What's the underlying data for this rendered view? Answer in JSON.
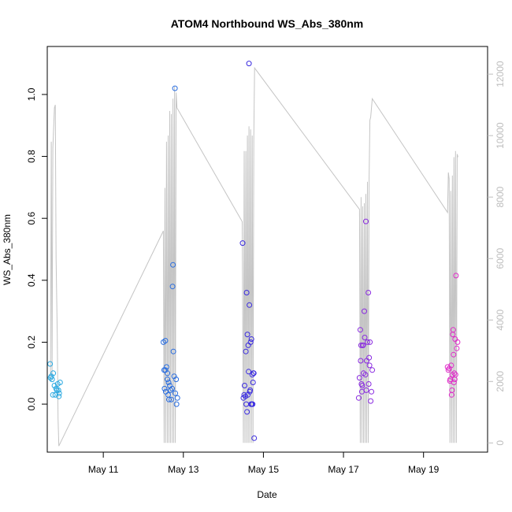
{
  "chart_data": {
    "type": "scatter",
    "title": "ATOM4 Northbound WS_Abs_380nm",
    "xlabel": "Date",
    "ylabel": "WS_Abs_380nm",
    "x_axis": {
      "unit": "days since May 1",
      "range": [
        9.6,
        20.6
      ],
      "ticks": [
        {
          "value": 11,
          "label": "May 11"
        },
        {
          "value": 13,
          "label": "May 13"
        },
        {
          "value": 15,
          "label": "May 15"
        },
        {
          "value": 17,
          "label": "May 17"
        },
        {
          "value": 19,
          "label": "May 19"
        }
      ]
    },
    "y_left": {
      "range": [
        -0.155,
        1.155
      ],
      "ticks": [
        0.0,
        0.2,
        0.4,
        0.6,
        0.8,
        1.0
      ],
      "tick_labels": [
        "0.0",
        "0.2",
        "0.4",
        "0.6",
        "0.8",
        "1.0"
      ]
    },
    "y_right": {
      "range": [
        -300,
        12900
      ],
      "ticks": [
        0,
        2000,
        4000,
        6000,
        8000,
        10000,
        12000
      ],
      "tick_labels": [
        "0",
        "2000",
        "4000",
        "6000",
        "8000",
        "10000",
        "12000"
      ],
      "color": "#bdbdbd"
    },
    "grid": false,
    "legend": "none",
    "series": [
      {
        "marker": "open-circle",
        "color": "#29a8e0",
        "points": [
          [
            9.67,
            0.13
          ],
          [
            9.7,
            0.09
          ],
          [
            9.72,
            0.08
          ],
          [
            9.75,
            0.1
          ],
          [
            9.78,
            0.06
          ],
          [
            9.8,
            0.03
          ],
          [
            9.82,
            0.05
          ],
          [
            9.84,
            0.045
          ],
          [
            9.86,
            0.065
          ],
          [
            9.88,
            0.045
          ],
          [
            9.89,
            0.025
          ],
          [
            9.9,
            0.035
          ],
          [
            9.92,
            0.07
          ],
          [
            9.74,
            0.03
          ],
          [
            9.68,
            0.085
          ]
        ]
      },
      {
        "marker": "open-circle",
        "color": "#2a6ee0",
        "points": [
          [
            12.5,
            0.2
          ],
          [
            12.52,
            0.11
          ],
          [
            12.53,
            0.05
          ],
          [
            12.55,
            0.11
          ],
          [
            12.56,
            0.04
          ],
          [
            12.58,
            0.12
          ],
          [
            12.6,
            0.08
          ],
          [
            12.62,
            0.03
          ],
          [
            12.63,
            0.07
          ],
          [
            12.64,
            0.015
          ],
          [
            12.66,
            0.06
          ],
          [
            12.68,
            0.045
          ],
          [
            12.7,
            0.015
          ],
          [
            12.72,
            0.05
          ],
          [
            12.73,
            0.38
          ],
          [
            12.74,
            0.45
          ],
          [
            12.75,
            0.17
          ],
          [
            12.77,
            0.09
          ],
          [
            12.79,
            1.02
          ],
          [
            12.8,
            0.035
          ],
          [
            12.82,
            0.08
          ],
          [
            12.83,
            0.0
          ],
          [
            12.85,
            0.02
          ],
          [
            12.55,
            0.205
          ],
          [
            12.6,
            0.1
          ]
        ]
      },
      {
        "marker": "open-circle",
        "color": "#3a2be0",
        "points": [
          [
            14.48,
            0.52
          ],
          [
            14.5,
            0.02
          ],
          [
            14.52,
            0.03
          ],
          [
            14.53,
            0.06
          ],
          [
            14.55,
            0.025
          ],
          [
            14.56,
            0.17
          ],
          [
            14.58,
            0.36
          ],
          [
            14.6,
            0.225
          ],
          [
            14.62,
            0.19
          ],
          [
            14.63,
            0.105
          ],
          [
            14.65,
            0.32
          ],
          [
            14.66,
            0.04
          ],
          [
            14.68,
            0.2
          ],
          [
            14.69,
            0.0
          ],
          [
            14.7,
            0.21
          ],
          [
            14.71,
            0.0
          ],
          [
            14.72,
            0.095
          ],
          [
            14.74,
            0.07
          ],
          [
            14.75,
            0.1
          ],
          [
            14.77,
            -0.11
          ],
          [
            14.57,
            0.0
          ],
          [
            14.59,
            -0.025
          ],
          [
            14.61,
            0.03
          ],
          [
            14.64,
            1.1
          ],
          [
            14.67,
            0.045
          ],
          [
            14.73,
            0.0
          ],
          [
            14.76,
            0.1
          ]
        ]
      },
      {
        "marker": "open-circle",
        "color": "#8a2be0",
        "points": [
          [
            17.38,
            0.02
          ],
          [
            17.4,
            0.085
          ],
          [
            17.42,
            0.24
          ],
          [
            17.44,
            0.19
          ],
          [
            17.45,
            0.065
          ],
          [
            17.47,
            0.06
          ],
          [
            17.49,
            0.19
          ],
          [
            17.5,
            0.1
          ],
          [
            17.52,
            0.3
          ],
          [
            17.53,
            0.215
          ],
          [
            17.55,
            0.095
          ],
          [
            17.56,
            0.59
          ],
          [
            17.58,
            0.14
          ],
          [
            17.6,
            0.2
          ],
          [
            17.62,
            0.36
          ],
          [
            17.63,
            0.065
          ],
          [
            17.65,
            0.125
          ],
          [
            17.66,
            0.2
          ],
          [
            17.68,
            0.01
          ],
          [
            17.7,
            0.04
          ],
          [
            17.72,
            0.11
          ],
          [
            17.43,
            0.14
          ],
          [
            17.46,
            0.04
          ],
          [
            17.57,
            0.045
          ],
          [
            17.64,
            0.15
          ],
          [
            17.48,
            0.19
          ]
        ]
      },
      {
        "marker": "open-circle",
        "color": "#e02bc9",
        "points": [
          [
            19.6,
            0.12
          ],
          [
            19.62,
            0.11
          ],
          [
            19.64,
            0.115
          ],
          [
            19.66,
            0.075
          ],
          [
            19.67,
            0.08
          ],
          [
            19.69,
            0.125
          ],
          [
            19.7,
            0.03
          ],
          [
            19.71,
            0.045
          ],
          [
            19.73,
            0.225
          ],
          [
            19.74,
            0.24
          ],
          [
            19.75,
            0.16
          ],
          [
            19.77,
            0.1
          ],
          [
            19.78,
            0.08
          ],
          [
            19.79,
            0.21
          ],
          [
            19.8,
            0.095
          ],
          [
            19.81,
            0.415
          ],
          [
            19.83,
            0.18
          ],
          [
            19.85,
            0.2
          ],
          [
            19.72,
            0.095
          ],
          [
            19.76,
            0.07
          ]
        ]
      }
    ],
    "line_series": {
      "axis": "right",
      "color": "#c4c4c4",
      "description": "altitude-like trace on secondary axis",
      "points": [
        [
          9.68,
          2000
        ],
        [
          9.7,
          9800
        ],
        [
          9.72,
          2200
        ],
        [
          9.74,
          9600
        ],
        [
          9.78,
          10900
        ],
        [
          9.8,
          11000
        ],
        [
          9.82,
          6000
        ],
        [
          9.85,
          3500
        ],
        [
          9.87,
          800
        ],
        [
          9.89,
          -100
        ],
        [
          12.5,
          6900
        ],
        [
          12.52,
          0
        ],
        [
          12.54,
          8300
        ],
        [
          12.56,
          0
        ],
        [
          12.58,
          9800
        ],
        [
          12.6,
          0
        ],
        [
          12.62,
          10000
        ],
        [
          12.64,
          0
        ],
        [
          12.66,
          10800
        ],
        [
          12.68,
          0
        ],
        [
          12.7,
          10700
        ],
        [
          12.72,
          0
        ],
        [
          12.74,
          11200
        ],
        [
          12.76,
          0
        ],
        [
          12.78,
          11600
        ],
        [
          12.8,
          0
        ],
        [
          12.82,
          11400
        ],
        [
          12.84,
          10900
        ],
        [
          14.47,
          7200
        ],
        [
          14.5,
          0
        ],
        [
          14.52,
          9500
        ],
        [
          14.54,
          0
        ],
        [
          14.56,
          9500
        ],
        [
          14.58,
          0
        ],
        [
          14.6,
          10000
        ],
        [
          14.62,
          0
        ],
        [
          14.64,
          10300
        ],
        [
          14.66,
          0
        ],
        [
          14.68,
          10200
        ],
        [
          14.7,
          0
        ],
        [
          14.72,
          10000
        ],
        [
          14.74,
          0
        ],
        [
          14.76,
          9900
        ],
        [
          14.78,
          12200
        ],
        [
          17.4,
          7600
        ],
        [
          17.42,
          0
        ],
        [
          17.44,
          8000
        ],
        [
          17.46,
          0
        ],
        [
          17.48,
          7700
        ],
        [
          17.5,
          0
        ],
        [
          17.52,
          7800
        ],
        [
          17.54,
          0
        ],
        [
          17.56,
          8100
        ],
        [
          17.58,
          0
        ],
        [
          17.6,
          8500
        ],
        [
          17.62,
          0
        ],
        [
          17.64,
          8600
        ],
        [
          17.66,
          10500
        ],
        [
          17.68,
          10600
        ],
        [
          17.72,
          11200
        ],
        [
          19.6,
          7500
        ],
        [
          19.62,
          8800
        ],
        [
          19.64,
          8600
        ],
        [
          19.66,
          0
        ],
        [
          19.68,
          8200
        ],
        [
          19.7,
          0
        ],
        [
          19.72,
          8700
        ],
        [
          19.74,
          0
        ],
        [
          19.76,
          9300
        ],
        [
          19.78,
          0
        ],
        [
          19.8,
          9500
        ],
        [
          19.82,
          0
        ],
        [
          19.84,
          9400
        ],
        [
          19.86,
          9300
        ]
      ]
    }
  }
}
